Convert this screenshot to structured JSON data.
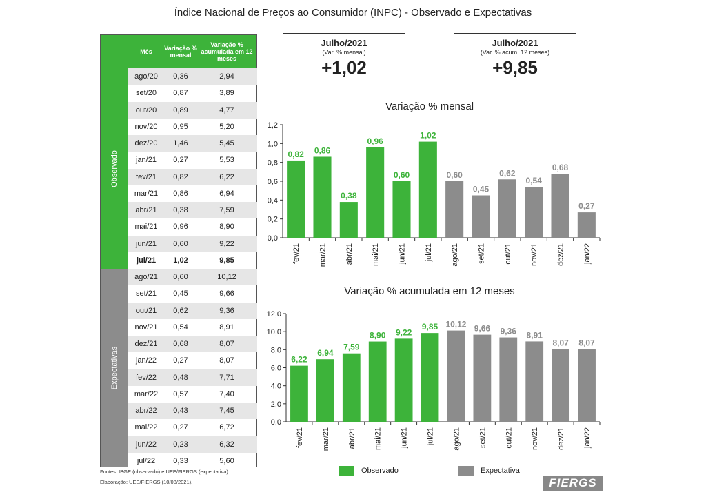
{
  "title": "Índice Nacional de Preços ao Consumidor (INPC) - Observado e Expectativas",
  "table": {
    "headers": [
      "Mês",
      "Variação % mensal",
      "Variação % acumulada em 12 meses"
    ],
    "observed_label": "Observado",
    "expected_label": "Expectativas",
    "observed_rows": [
      [
        "ago/20",
        "0,36",
        "2,94"
      ],
      [
        "set/20",
        "0,87",
        "3,89"
      ],
      [
        "out/20",
        "0,89",
        "4,77"
      ],
      [
        "nov/20",
        "0,95",
        "5,20"
      ],
      [
        "dez/20",
        "1,46",
        "5,45"
      ],
      [
        "jan/21",
        "0,27",
        "5,53"
      ],
      [
        "fev/21",
        "0,82",
        "6,22"
      ],
      [
        "mar/21",
        "0,86",
        "6,94"
      ],
      [
        "abr/21",
        "0,38",
        "7,59"
      ],
      [
        "mai/21",
        "0,96",
        "8,90"
      ],
      [
        "jun/21",
        "0,60",
        "9,22"
      ],
      [
        "jul/21",
        "1,02",
        "9,85"
      ]
    ],
    "expected_rows": [
      [
        "ago/21",
        "0,60",
        "10,12"
      ],
      [
        "set/21",
        "0,45",
        "9,66"
      ],
      [
        "out/21",
        "0,62",
        "9,36"
      ],
      [
        "nov/21",
        "0,54",
        "8,91"
      ],
      [
        "dez/21",
        "0,68",
        "8,07"
      ],
      [
        "jan/22",
        "0,27",
        "8,07"
      ],
      [
        "fev/22",
        "0,48",
        "7,71"
      ],
      [
        "mar/22",
        "0,57",
        "7,40"
      ],
      [
        "abr/22",
        "0,43",
        "7,45"
      ],
      [
        "mai/22",
        "0,27",
        "6,72"
      ],
      [
        "jun/22",
        "0,23",
        "6,32"
      ],
      [
        "jul/22",
        "0,33",
        "5,60"
      ]
    ]
  },
  "notes": {
    "sources": "Fontes: IBGE (observado) e UEE/FIERGS (expectativa).",
    "elaboration": "Elaboração: UEE/FIERGS (10/08/2021)."
  },
  "box_monthly": {
    "title": "Julho/2021",
    "subtitle": "(Var. % mensal)",
    "value": "+1,02"
  },
  "box_accum": {
    "title": "Julho/2021",
    "subtitle": "(Var. % acum. 12 meses)",
    "value": "+9,85"
  },
  "legend": {
    "observed": "Observado",
    "expected": "Expectativa"
  },
  "logo": "FIERGS",
  "colors": {
    "observed": "#3db33a",
    "expected": "#8c8c8c"
  },
  "chart_data": [
    {
      "type": "bar",
      "title": "Variação % mensal",
      "categories": [
        "fev/21",
        "mar/21",
        "abr/21",
        "mai/21",
        "jun/21",
        "jul/21",
        "ago/21",
        "set/21",
        "out/21",
        "nov/21",
        "dez/21",
        "jan/22"
      ],
      "values": [
        0.82,
        0.86,
        0.38,
        0.96,
        0.6,
        1.02,
        0.6,
        0.45,
        0.62,
        0.54,
        0.68,
        0.27
      ],
      "labels": [
        "0,82",
        "0,86",
        "0,38",
        "0,96",
        "0,60",
        "1,02",
        "0,60",
        "0,45",
        "0,62",
        "0,54",
        "0,68",
        "0,27"
      ],
      "observed_count": 6,
      "ylim": [
        0,
        1.2
      ],
      "yticks": [
        "0,0",
        "0,2",
        "0,4",
        "0,6",
        "0,8",
        "1,0",
        "1,2"
      ]
    },
    {
      "type": "bar",
      "title": "Variação % acumulada em 12 meses",
      "categories": [
        "fev/21",
        "mar/21",
        "abr/21",
        "mai/21",
        "jun/21",
        "jul/21",
        "ago/21",
        "set/21",
        "out/21",
        "nov/21",
        "dez/21",
        "jan/22"
      ],
      "values": [
        6.22,
        6.94,
        7.59,
        8.9,
        9.22,
        9.85,
        10.12,
        9.66,
        9.36,
        8.91,
        8.07,
        8.07
      ],
      "labels": [
        "6,22",
        "6,94",
        "7,59",
        "8,90",
        "9,22",
        "9,85",
        "10,12",
        "9,66",
        "9,36",
        "8,91",
        "8,07",
        "8,07"
      ],
      "observed_count": 6,
      "ylim": [
        0,
        12
      ],
      "yticks": [
        "0,0",
        "2,0",
        "4,0",
        "6,0",
        "8,0",
        "10,0",
        "12,0"
      ]
    }
  ]
}
